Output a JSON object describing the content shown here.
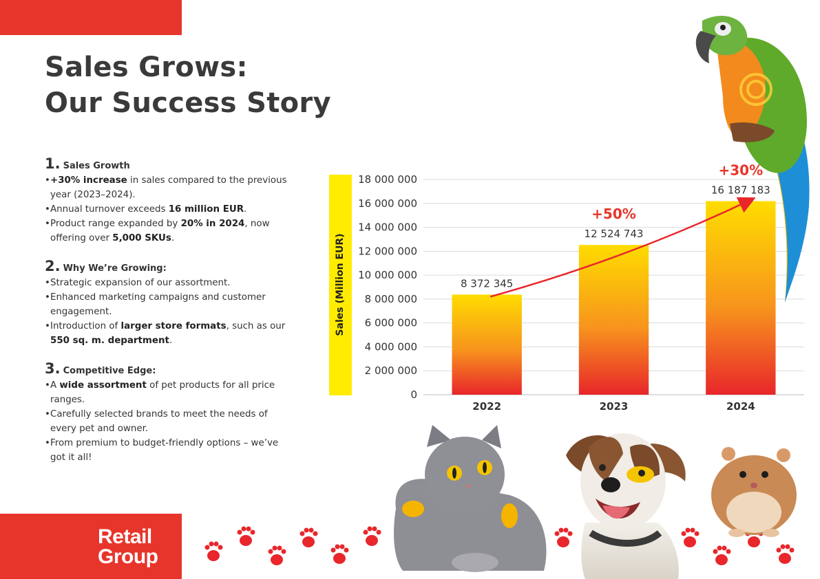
{
  "header": {
    "title_line1": "Sales Grows:",
    "title_line2": "Our Success Story"
  },
  "sections": [
    {
      "number": "1.",
      "title": "Sales Growth",
      "bullets": [
        [
          {
            "t": "+30% increase",
            "b": true
          },
          {
            "t": " in sales compared to the previous year (2023–2024)."
          }
        ],
        [
          {
            "t": "Annual turnover exceeds "
          },
          {
            "t": "16 million EUR",
            "b": true
          },
          {
            "t": "."
          }
        ],
        [
          {
            "t": "Product range expanded by "
          },
          {
            "t": "20% in 2024",
            "b": true
          },
          {
            "t": ", now offering over "
          },
          {
            "t": "5,000 SKUs",
            "b": true
          },
          {
            "t": "."
          }
        ]
      ]
    },
    {
      "number": "2.",
      "title": "Why We’re Growing:",
      "bullets": [
        [
          {
            "t": "Strategic expansion of our assortment."
          }
        ],
        [
          {
            "t": "Enhanced marketing campaigns and customer engagement."
          }
        ],
        [
          {
            "t": "Introduction of "
          },
          {
            "t": "larger store formats",
            "b": true
          },
          {
            "t": ", such as our "
          },
          {
            "t": "550 sq. m. department",
            "b": true
          },
          {
            "t": "."
          }
        ]
      ]
    },
    {
      "number": "3.",
      "title": "Competitive Edge:",
      "bullets": [
        [
          {
            "t": "A "
          },
          {
            "t": "wide assortment",
            "b": true
          },
          {
            "t": " of pet products for all price ranges."
          }
        ],
        [
          {
            "t": "Carefully selected brands to meet the needs of every pet and owner."
          }
        ],
        [
          {
            "t": "From premium to budget-friendly options – we’ve got it all!"
          }
        ]
      ]
    }
  ],
  "logo": {
    "line1": "Retail",
    "line2": "Group"
  },
  "colors": {
    "accent": "#e8352b",
    "bar_top": "#ffd400",
    "bar_bottom": "#e8262b",
    "label_bar": "#ffec00"
  },
  "chart_data": {
    "type": "bar",
    "categories": [
      "2022",
      "2023",
      "2024"
    ],
    "values": [
      8372345,
      12524743,
      16187183
    ],
    "value_labels": [
      "8 372 345",
      "12 524 743",
      "16 187 183"
    ],
    "growth_labels": [
      "",
      "+50%",
      "+30%"
    ],
    "ylabel": "Sales (Million EUR)",
    "ylim": [
      0,
      18000000
    ],
    "yticks": [
      0,
      2000000,
      4000000,
      6000000,
      8000000,
      10000000,
      12000000,
      14000000,
      16000000,
      18000000
    ],
    "ytick_labels": [
      "0",
      "2 000 000",
      "4 000 000",
      "6 000 000",
      "8 000 000",
      "10 000 000",
      "12 000 000",
      "14 000 000",
      "16 000 000",
      "18 000 000"
    ],
    "grid": true,
    "trend_arrow": true
  },
  "illustrations": [
    "parrot-illustration",
    "cat-illustration",
    "dog-illustration",
    "hamster-illustration",
    "paw-print-icon"
  ]
}
